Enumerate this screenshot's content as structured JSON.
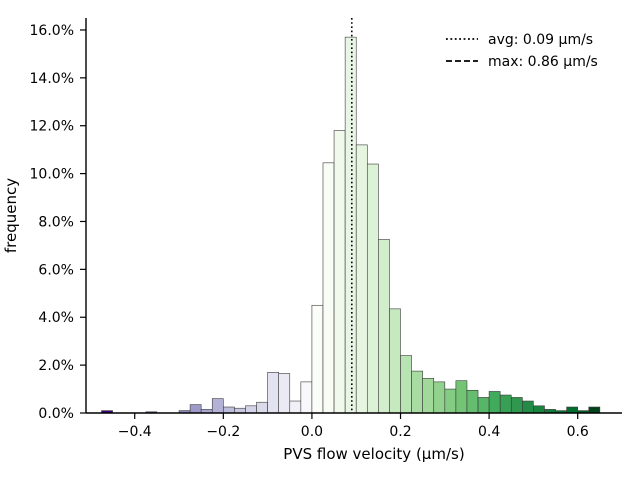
{
  "chart_data": {
    "type": "bar",
    "xlabel": "PVS flow velocity (µm/s)",
    "ylabel": "frequency",
    "xlim": [
      -0.51,
      0.7
    ],
    "ylim": [
      0,
      16.5
    ],
    "x_ticks": [
      {
        "value": -0.4,
        "label": "−0.4"
      },
      {
        "value": -0.2,
        "label": "−0.2"
      },
      {
        "value": 0.0,
        "label": "0.0"
      },
      {
        "value": 0.2,
        "label": "0.2"
      },
      {
        "value": 0.4,
        "label": "0.4"
      },
      {
        "value": 0.6,
        "label": "0.6"
      }
    ],
    "y_ticks": [
      {
        "value": 0,
        "label": "0.0%"
      },
      {
        "value": 2,
        "label": "2.0%"
      },
      {
        "value": 4,
        "label": "4.0%"
      },
      {
        "value": 6,
        "label": "6.0%"
      },
      {
        "value": 8,
        "label": "8.0%"
      },
      {
        "value": 10,
        "label": "10.0%"
      },
      {
        "value": 12,
        "label": "12.0%"
      },
      {
        "value": 14,
        "label": "14.0%"
      },
      {
        "value": 16,
        "label": "16.0%"
      }
    ],
    "bin_width": 0.025,
    "bins": [
      {
        "x0": -0.475,
        "value": 0.1,
        "color": "#3f007d"
      },
      {
        "x0": -0.45,
        "value": 0.0,
        "color": "#4a1486"
      },
      {
        "x0": -0.425,
        "value": 0.0,
        "color": "#54278f"
      },
      {
        "x0": -0.4,
        "value": 0.0,
        "color": "#5e3c99"
      },
      {
        "x0": -0.375,
        "value": 0.05,
        "color": "#6a51a3"
      },
      {
        "x0": -0.35,
        "value": 0.0,
        "color": "#756bb1"
      },
      {
        "x0": -0.325,
        "value": 0.0,
        "color": "#807dba"
      },
      {
        "x0": -0.3,
        "value": 0.1,
        "color": "#8c89c0"
      },
      {
        "x0": -0.275,
        "value": 0.35,
        "color": "#9e9ac8"
      },
      {
        "x0": -0.25,
        "value": 0.15,
        "color": "#a9a6cf"
      },
      {
        "x0": -0.225,
        "value": 0.6,
        "color": "#b3b1d6"
      },
      {
        "x0": -0.2,
        "value": 0.25,
        "color": "#bcbddc"
      },
      {
        "x0": -0.175,
        "value": 0.2,
        "color": "#c9c8e2"
      },
      {
        "x0": -0.15,
        "value": 0.3,
        "color": "#d4d3e9"
      },
      {
        "x0": -0.125,
        "value": 0.45,
        "color": "#dadaeb"
      },
      {
        "x0": -0.1,
        "value": 1.7,
        "color": "#e3e2f0"
      },
      {
        "x0": -0.075,
        "value": 1.65,
        "color": "#ebeaf4"
      },
      {
        "x0": -0.05,
        "value": 0.5,
        "color": "#f2f0f7"
      },
      {
        "x0": -0.025,
        "value": 1.3,
        "color": "#f8f7fb"
      },
      {
        "x0": 0.0,
        "value": 4.5,
        "color": "#fbfdf9"
      },
      {
        "x0": 0.025,
        "value": 10.45,
        "color": "#f7fcf5"
      },
      {
        "x0": 0.05,
        "value": 11.8,
        "color": "#f0f9ec"
      },
      {
        "x0": 0.075,
        "value": 15.7,
        "color": "#eaf6e5"
      },
      {
        "x0": 0.1,
        "value": 11.2,
        "color": "#e5f5e0"
      },
      {
        "x0": 0.125,
        "value": 10.4,
        "color": "#dcf2d6"
      },
      {
        "x0": 0.15,
        "value": 7.25,
        "color": "#d1edcb"
      },
      {
        "x0": 0.175,
        "value": 4.35,
        "color": "#c7e9c0"
      },
      {
        "x0": 0.2,
        "value": 2.4,
        "color": "#b8e3b2"
      },
      {
        "x0": 0.225,
        "value": 1.75,
        "color": "#a8dca3"
      },
      {
        "x0": 0.25,
        "value": 1.45,
        "color": "#a1d99b"
      },
      {
        "x0": 0.275,
        "value": 1.3,
        "color": "#92d28e"
      },
      {
        "x0": 0.3,
        "value": 1.0,
        "color": "#84cb83"
      },
      {
        "x0": 0.325,
        "value": 1.35,
        "color": "#74c476"
      },
      {
        "x0": 0.35,
        "value": 0.95,
        "color": "#65bd6f"
      },
      {
        "x0": 0.375,
        "value": 0.65,
        "color": "#56b567"
      },
      {
        "x0": 0.4,
        "value": 0.9,
        "color": "#41ab5d"
      },
      {
        "x0": 0.425,
        "value": 0.75,
        "color": "#37a055"
      },
      {
        "x0": 0.45,
        "value": 0.65,
        "color": "#2f974e"
      },
      {
        "x0": 0.475,
        "value": 0.5,
        "color": "#238b45"
      },
      {
        "x0": 0.5,
        "value": 0.3,
        "color": "#1a843f"
      },
      {
        "x0": 0.525,
        "value": 0.15,
        "color": "#117b38"
      },
      {
        "x0": 0.55,
        "value": 0.1,
        "color": "#097532"
      },
      {
        "x0": 0.575,
        "value": 0.25,
        "color": "#006d2c"
      },
      {
        "x0": 0.6,
        "value": 0.1,
        "color": "#005f27"
      },
      {
        "x0": 0.625,
        "value": 0.25,
        "color": "#00441b"
      }
    ],
    "reference_lines": [
      {
        "value": 0.09,
        "style": "dotted",
        "label": "avg: 0.09 µm/s"
      },
      {
        "value": 0.86,
        "style": "dashed",
        "label": "max: 0.86 µm/s"
      }
    ],
    "legend_position": "top-right",
    "grid": false
  }
}
